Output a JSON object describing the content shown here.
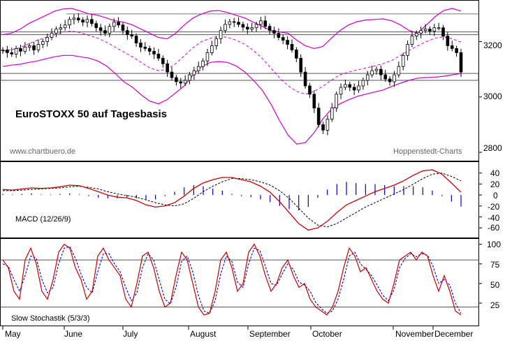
{
  "chart_data": {
    "type": "line",
    "title": "EuroSTOXX 50 auf Tagesbasis",
    "watermark_left": "www.chartbuero.de",
    "watermark_right": "Hoppenstedt-Charts",
    "months": [
      "May",
      "June",
      "July",
      "August",
      "September",
      "October",
      "November",
      "December"
    ],
    "colors": {
      "price": "#000000",
      "bollinger": "#cc00cc",
      "macd": "#cc0000",
      "signal": "#000000",
      "histogram": "#0000cc",
      "stoch_k": "#cc0000",
      "stoch_d": "#0000cc",
      "levels": "#555555"
    },
    "panels": [
      {
        "name": "price",
        "ylim": [
          2780,
          3330
        ],
        "yticks": [
          "3200",
          "3000",
          "2800"
        ],
        "ytick_values": [
          3200,
          3000,
          2800
        ],
        "support_zone": [
          3060,
          3085
        ],
        "resistance_zone": [
          3225,
          3235
        ],
        "top_band_line": 3300,
        "series": [
          {
            "name": "Price",
            "values": [
              3170,
              3160,
              3155,
              3175,
              3165,
              3180,
              3185,
              3170,
              3190,
              3200,
              3215,
              3230,
              3245,
              3250,
              3260,
              3280,
              3285,
              3278,
              3270,
              3280,
              3265,
              3250,
              3240,
              3230,
              3255,
              3270,
              3260,
              3240,
              3225,
              3220,
              3195,
              3180,
              3175,
              3165,
              3155,
              3140,
              3120,
              3090,
              3070,
              3055,
              3050,
              3060,
              3080,
              3095,
              3110,
              3130,
              3160,
              3185,
              3210,
              3240,
              3262,
              3272,
              3270,
              3262,
              3252,
              3245,
              3250,
              3262,
              3275,
              3255,
              3240,
              3230,
              3215,
              3205,
              3190,
              3170,
              3140,
              3090,
              3040,
              3010,
              2960,
              2900,
              2880,
              2920,
              2960,
              3010,
              3035,
              3045,
              3035,
              3025,
              3040,
              3060,
              3080,
              3095,
              3100,
              3080,
              3065,
              3055,
              3080,
              3110,
              3150,
              3190,
              3220,
              3230,
              3240,
              3245,
              3238,
              3250,
              3250,
              3220,
              3185,
              3175,
              3160,
              3090
            ]
          },
          {
            "name": "Bollinger upper",
            "values": [
              3225,
              3230,
              3245,
              3265,
              3280,
              3295,
              3310,
              3318,
              3320,
              3310,
              3300,
              3295,
              3285,
              3275,
              3270,
              3260,
              3245,
              3230,
              3215,
              3210,
              3230,
              3260,
              3285,
              3300,
              3310,
              3312,
              3305,
              3295,
              3285,
              3270,
              3255,
              3240,
              3235,
              3230,
              3205,
              3185,
              3175,
              3182,
              3212,
              3240,
              3260,
              3272,
              3278,
              3280,
              3282,
              3275,
              3260,
              3240,
              3230,
              3260,
              3290,
              3312,
              3320,
              3310
            ]
          },
          {
            "name": "Bollinger lower",
            "values": [
              3110,
              3115,
              3118,
              3125,
              3130,
              3138,
              3145,
              3150,
              3150,
              3145,
              3140,
              3130,
              3112,
              3085,
              3055,
              3035,
              3008,
              2985,
              2975,
              2990,
              3015,
              3040,
              3080,
              3110,
              3125,
              3128,
              3125,
              3112,
              3090,
              3060,
              3025,
              2975,
              2915,
              2862,
              2830,
              2835,
              2870,
              2920,
              2955,
              2975,
              2990,
              3002,
              3010,
              3018,
              3025,
              3038,
              3050,
              3060,
              3068,
              3070,
              3072,
              3075,
              3080,
              3085
            ]
          },
          {
            "name": "Moving average",
            "values": [
              3165,
              3170,
              3178,
              3192,
              3205,
              3215,
              3225,
              3235,
              3238,
              3232,
              3222,
              3212,
              3198,
              3180,
              3162,
              3145,
              3125,
              3105,
              3095,
              3100,
              3120,
              3148,
              3178,
              3200,
              3212,
              3220,
              3215,
              3205,
              3190,
              3168,
              3140,
              3105,
              3070,
              3040,
              3020,
              3010,
              3020,
              3038,
              3060,
              3080,
              3090,
              3098,
              3105,
              3112,
              3120,
              3132,
              3150,
              3168,
              3185,
              3200,
              3212,
              3218,
              3210,
              3198
            ]
          }
        ]
      },
      {
        "name": "macd",
        "label": "MACD (12/26/9)",
        "ylim": [
          -75,
          55
        ],
        "yticks": [
          "40",
          "20",
          "0",
          "-20",
          "-40",
          "-60"
        ],
        "ytick_values": [
          40,
          20,
          0,
          -20,
          -40,
          -60
        ],
        "series": [
          {
            "name": "MACD",
            "values": [
              10,
              9,
              11,
              13,
              12,
              13,
              15,
              18,
              17,
              12,
              6,
              0,
              -4,
              -5,
              -10,
              -18,
              -22,
              -20,
              -14,
              -2,
              12,
              22,
              28,
              32,
              32,
              28,
              24,
              16,
              5,
              -12,
              -32,
              -52,
              -64,
              -60,
              -48,
              -32,
              -18,
              -10,
              -2,
              6,
              12,
              18,
              26,
              36,
              44,
              46,
              38,
              22,
              5
            ]
          },
          {
            "name": "Signal",
            "values": [
              8,
              8,
              9,
              10,
              11,
              12,
              13,
              15,
              16,
              14,
              11,
              6,
              2,
              -1,
              -4,
              -9,
              -14,
              -18,
              -20,
              -16,
              -6,
              6,
              16,
              24,
              30,
              30,
              28,
              24,
              18,
              8,
              -6,
              -24,
              -42,
              -55,
              -58,
              -52,
              -42,
              -32,
              -22,
              -14,
              -6,
              2,
              10,
              20,
              30,
              38,
              40,
              34,
              26
            ]
          },
          {
            "name": "Histogram",
            "values": [
              2,
              1,
              2,
              3,
              1,
              1,
              2,
              3,
              1,
              -2,
              -5,
              -6,
              -6,
              -4,
              -6,
              -9,
              -8,
              -2,
              6,
              14,
              18,
              16,
              12,
              8,
              2,
              -2,
              -4,
              -8,
              -13,
              -20,
              -26,
              -28,
              -22,
              -5,
              10,
              20,
              24,
              22,
              20,
              20,
              18,
              16,
              16,
              16,
              14,
              8,
              -2,
              -12,
              -21
            ]
          }
        ]
      },
      {
        "name": "stochastic",
        "label": "Slow Stochastik (5/3/3)",
        "ylim": [
          0,
          105
        ],
        "yticks": [
          "100",
          "75",
          "50",
          "25"
        ],
        "ytick_values": [
          100,
          75,
          50,
          25
        ],
        "levels": [
          80,
          20
        ],
        "series": [
          {
            "name": "%K",
            "values": [
              80,
              70,
              40,
              30,
              80,
              95,
              75,
              40,
              30,
              55,
              90,
              100,
              95,
              70,
              55,
              30,
              40,
              85,
              95,
              80,
              70,
              60,
              30,
              20,
              50,
              85,
              90,
              70,
              40,
              20,
              25,
              60,
              90,
              80,
              50,
              20,
              10,
              12,
              40,
              80,
              90,
              70,
              40,
              50,
              90,
              100,
              85,
              60,
              40,
              50,
              70,
              80,
              60,
              45,
              50,
              30,
              20,
              15,
              10,
              20,
              40,
              70,
              95,
              85,
              65,
              70,
              55,
              40,
              30,
              25,
              50,
              80,
              85,
              90,
              80,
              90,
              85,
              60,
              40,
              60,
              40,
              15,
              10
            ]
          },
          {
            "name": "%D",
            "values": [
              75,
              72,
              55,
              40,
              60,
              85,
              82,
              55,
              38,
              45,
              75,
              95,
              97,
              82,
              62,
              45,
              38,
              65,
              88,
              88,
              75,
              65,
              45,
              28,
              38,
              70,
              88,
              80,
              55,
              30,
              24,
              45,
              78,
              85,
              65,
              35,
              15,
              12,
              28,
              62,
              85,
              78,
              52,
              45,
              75,
              95,
              92,
              72,
              50,
              48,
              62,
              75,
              68,
              52,
              48,
              40,
              26,
              18,
              12,
              15,
              30,
              55,
              85,
              90,
              75,
              68,
              60,
              48,
              35,
              28,
              42,
              70,
              82,
              88,
              84,
              88,
              86,
              72,
              50,
              55,
              48,
              25,
              12
            ]
          }
        ]
      }
    ]
  }
}
